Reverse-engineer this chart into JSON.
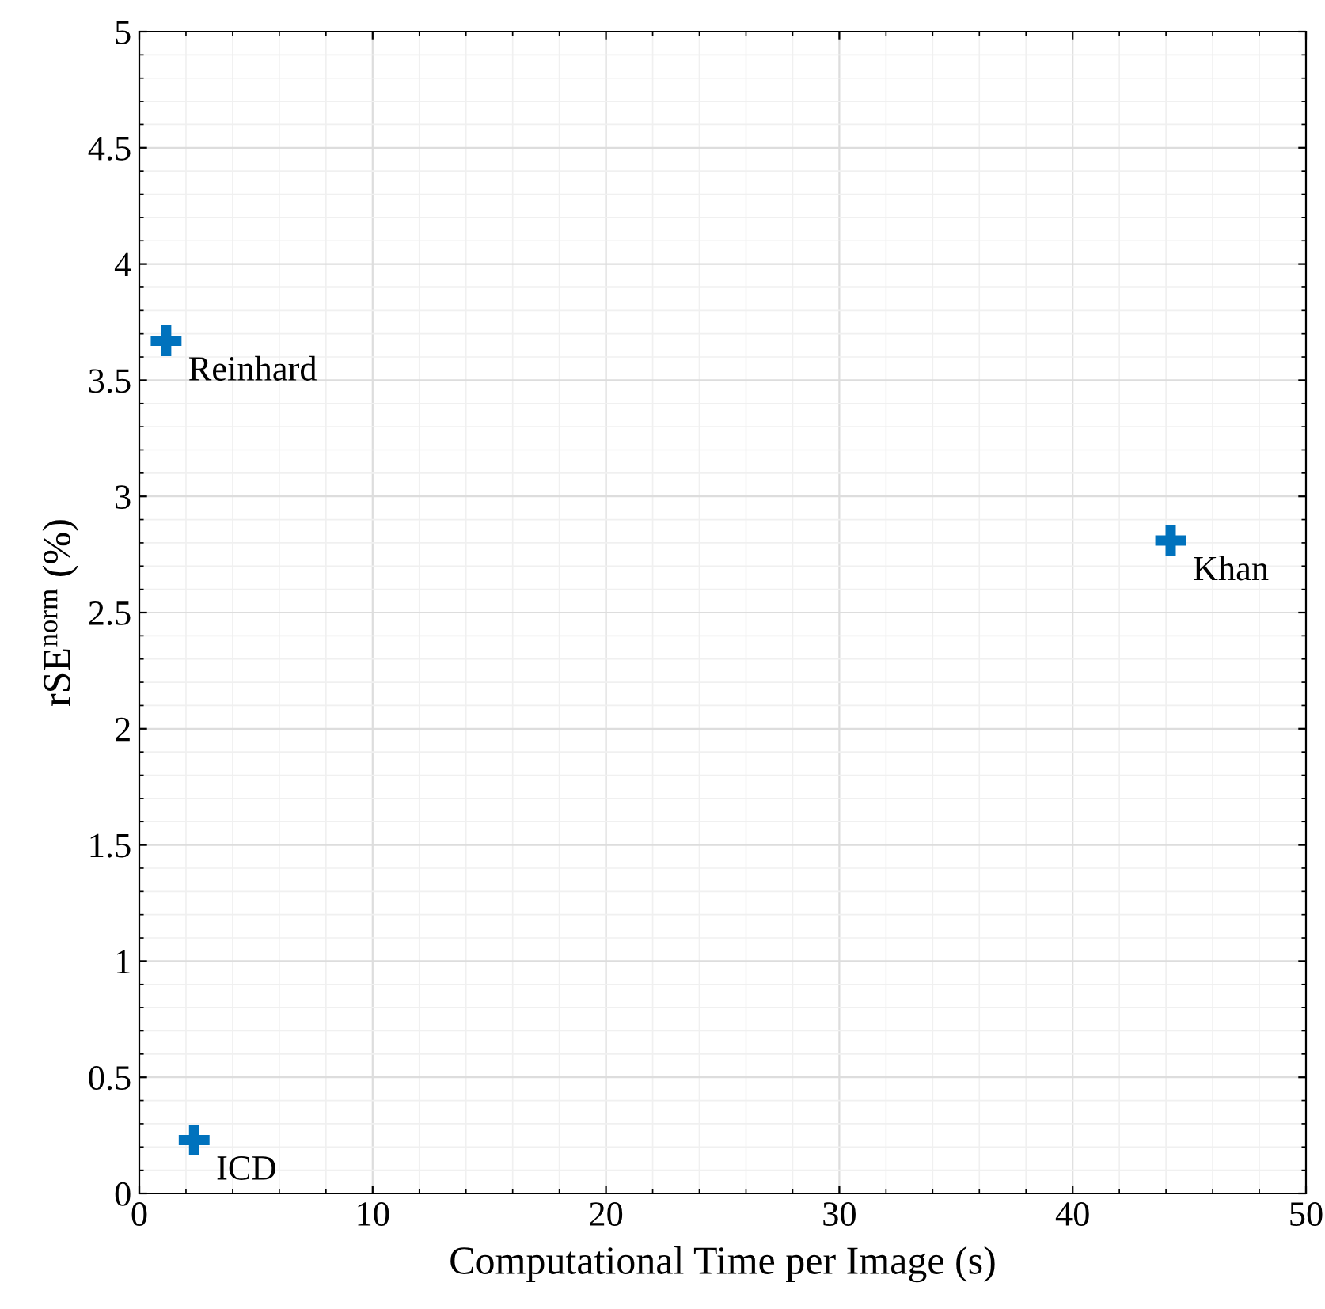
{
  "chart_data": {
    "type": "scatter",
    "xlabel": "Computational Time per Image (s)",
    "ylabel": "rSE$^{norm}$ (%)",
    "x": [
      1.15,
      2.35,
      44.2
    ],
    "series": [
      {
        "color": "#0072bd",
        "values": [
          3.67,
          0.23,
          2.81
        ]
      }
    ],
    "marker": "cross",
    "annotations": [
      {
        "text": "Reinhard",
        "x": 1.15,
        "y": 3.67
      },
      {
        "text": "ICD",
        "x": 2.35,
        "y": 0.23
      },
      {
        "text": "Khan",
        "x": 44.2,
        "y": 2.81
      }
    ],
    "xlim": [
      0,
      50
    ],
    "xticks": [
      0,
      10,
      20,
      30,
      40,
      50
    ],
    "ylim": [
      0,
      5
    ],
    "yticks": [
      0,
      0.5,
      1,
      1.5,
      2,
      2.5,
      3,
      3.5,
      4,
      4.5,
      5
    ],
    "grid": true
  }
}
